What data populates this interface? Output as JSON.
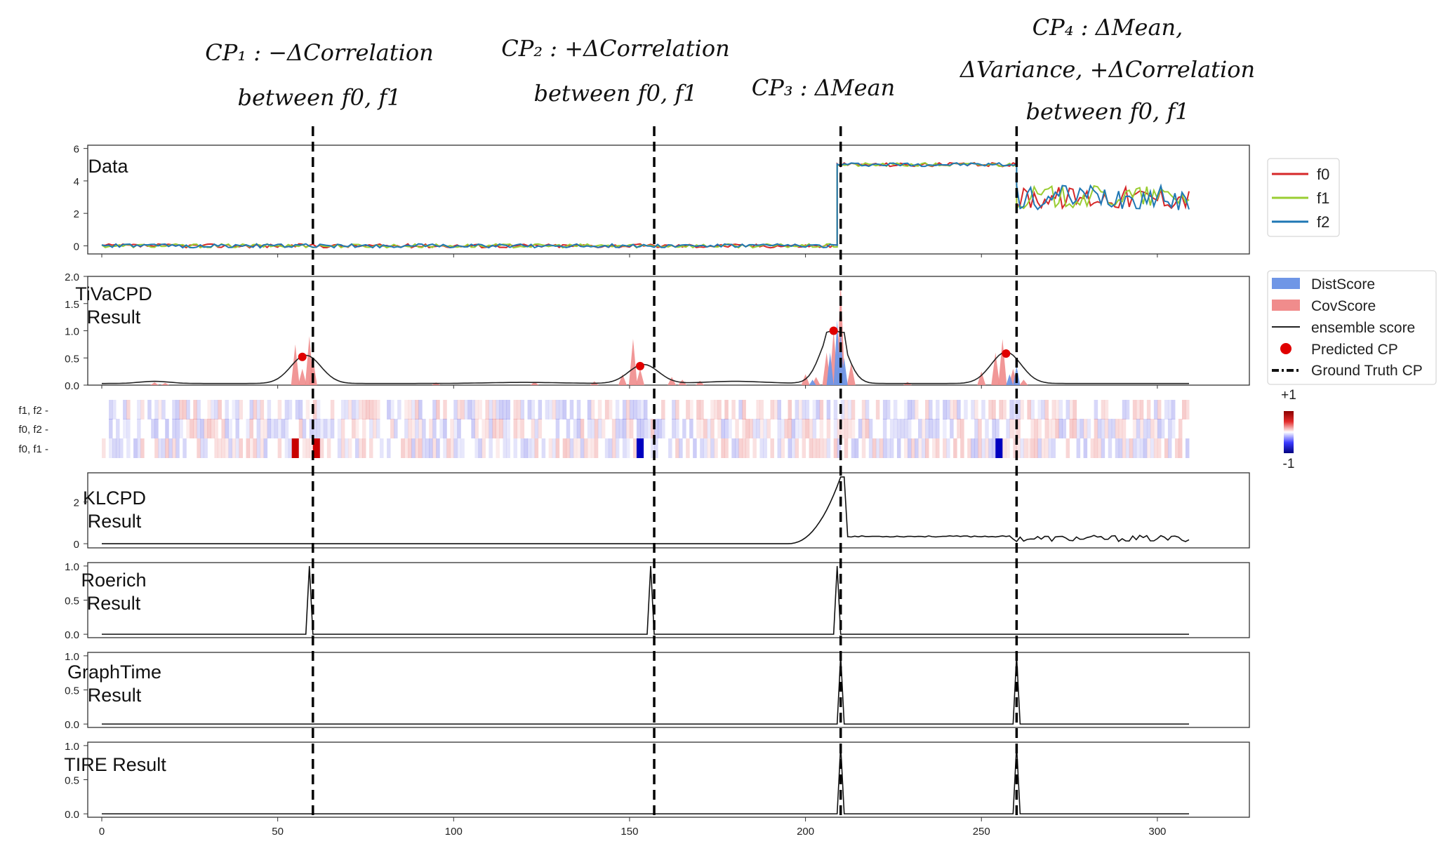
{
  "annotations": [
    {
      "lines": [
        "CP₁ : −ΔCorrelation",
        "between f0, f1"
      ]
    },
    {
      "lines": [
        "CP₂ : +ΔCorrelation",
        "between f0, f1"
      ]
    },
    {
      "lines": [
        "CP₃ : ΔMean"
      ]
    },
    {
      "lines": [
        "CP₄ : ΔMean,",
        "ΔVariance, +ΔCorrelation",
        "between f0, f1"
      ]
    }
  ],
  "colors": {
    "f0": "#d62728",
    "f1": "#9acd32",
    "f2": "#1f77b4",
    "dist": "#6f96e6",
    "cov": "#f08c8c",
    "predicted": "#e00000",
    "ensemble": "#222222"
  },
  "chart_data": {
    "type": "line",
    "x_ticks": [
      0,
      50,
      100,
      150,
      200,
      250,
      300
    ],
    "xlim": [
      0,
      310
    ],
    "ground_truth_cps": [
      60,
      157,
      210,
      260
    ],
    "panels": [
      {
        "label": "Data",
        "yticks": [
          "0",
          "2",
          "4",
          "6"
        ],
        "ylim": [
          -0.5,
          6.2
        ],
        "series": [
          {
            "name": "f0",
            "segments": [
              {
                "x": [
                  0,
                  209
                ],
                "mean": 0.0,
                "noise": 0.12
              },
              {
                "x": [
                  209,
                  260
                ],
                "mean": 5.0,
                "noise": 0.12
              },
              {
                "x": [
                  260,
                  309
                ],
                "mean": 3.0,
                "noise": 0.7
              }
            ]
          },
          {
            "name": "f1",
            "segments": [
              {
                "x": [
                  0,
                  209
                ],
                "mean": 0.0,
                "noise": 0.12
              },
              {
                "x": [
                  209,
                  260
                ],
                "mean": 5.0,
                "noise": 0.12
              },
              {
                "x": [
                  260,
                  309
                ],
                "mean": 3.0,
                "noise": 0.7
              }
            ]
          },
          {
            "name": "f2",
            "segments": [
              {
                "x": [
                  0,
                  209
                ],
                "mean": 0.0,
                "noise": 0.12
              },
              {
                "x": [
                  209,
                  260
                ],
                "mean": 5.0,
                "noise": 0.12
              },
              {
                "x": [
                  260,
                  309
                ],
                "mean": 3.0,
                "noise": 0.8
              }
            ]
          }
        ],
        "legend": [
          "f0",
          "f1",
          "f2"
        ]
      },
      {
        "label": "TiVaCPD Result",
        "yticks": [
          "0.0",
          "0.5",
          "1.0",
          "1.5",
          "2.0"
        ],
        "ylim": [
          0,
          2.0
        ],
        "ensemble_score_peaks": [
          {
            "x": 58,
            "y": 0.52
          },
          {
            "x": 154,
            "y": 0.35
          },
          {
            "x": 208,
            "y": 1.0
          },
          {
            "x": 257,
            "y": 0.58
          }
        ],
        "predicted_cps": [
          {
            "x": 57,
            "y": 0.52
          },
          {
            "x": 153,
            "y": 0.35
          },
          {
            "x": 208,
            "y": 1.0
          },
          {
            "x": 257,
            "y": 0.58
          }
        ],
        "legend": [
          "DistScore",
          "CovScore",
          "ensemble score",
          "Predicted CP",
          "Ground Truth CP"
        ]
      },
      {
        "label": "correlation heatmap",
        "rows": [
          "f1, f2 -",
          "f0, f2 -",
          "f0, f1 -"
        ],
        "colorbar": [
          "+1",
          "-1"
        ],
        "strong_cells": [
          {
            "row": "f0, f1",
            "x": 54,
            "value": 0.95
          },
          {
            "row": "f0, f1",
            "x": 60,
            "value": 0.95
          },
          {
            "row": "f0, f1",
            "x": 152,
            "value": -0.9
          },
          {
            "row": "f0, f1",
            "x": 254,
            "value": -0.95
          }
        ]
      },
      {
        "label": "KLCPD Result",
        "yticks": [
          "0",
          "2"
        ],
        "ylim": [
          -0.2,
          3.4
        ],
        "peaks": [
          {
            "x": 210,
            "y": 3.2
          }
        ],
        "plateau": {
          "x": [
            211,
            258
          ],
          "y": 0.35
        }
      },
      {
        "label": "Roerich Result",
        "yticks": [
          "0.0",
          "0.5",
          "1.0"
        ],
        "ylim": [
          -0.05,
          1.05
        ],
        "peaks": [
          {
            "x": 59,
            "y": 1.0
          },
          {
            "x": 156,
            "y": 1.0
          },
          {
            "x": 209,
            "y": 1.0
          }
        ]
      },
      {
        "label": "GraphTime Result",
        "yticks": [
          "0.0",
          "0.5",
          "1.0"
        ],
        "ylim": [
          -0.05,
          1.05
        ],
        "peaks": [
          {
            "x": 210,
            "y": 1.0
          },
          {
            "x": 260,
            "y": 1.0
          }
        ]
      },
      {
        "label": "TIRE Result",
        "yticks": [
          "0.0",
          "0.5",
          "1.0"
        ],
        "ylim": [
          -0.05,
          1.05
        ],
        "peaks": [
          {
            "x": 210,
            "y": 1.0
          },
          {
            "x": 260,
            "y": 1.0
          }
        ]
      }
    ]
  }
}
